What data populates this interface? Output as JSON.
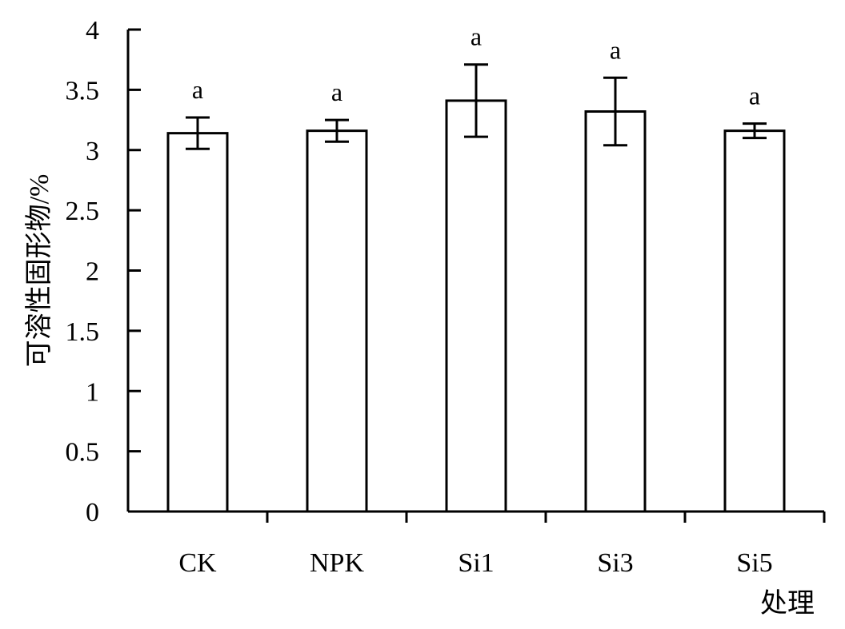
{
  "chart_data": {
    "type": "bar",
    "categories": [
      "CK",
      "NPK",
      "Si1",
      "Si3",
      "Si5"
    ],
    "values": [
      3.14,
      3.16,
      3.41,
      3.32,
      3.16
    ],
    "error": [
      0.13,
      0.09,
      0.3,
      0.28,
      0.06
    ],
    "significance": [
      "a",
      "a",
      "a",
      "a",
      "a"
    ],
    "xlabel": "处理",
    "ylabel": "可溶性固形物/%",
    "ylim": [
      0,
      4
    ],
    "yticks": [
      "0",
      "0.5",
      "1",
      "1.5",
      "2",
      "2.5",
      "3",
      "3.5",
      "4"
    ],
    "grid": false,
    "bar_color": "#ffffff",
    "edge_color": "#000000"
  }
}
